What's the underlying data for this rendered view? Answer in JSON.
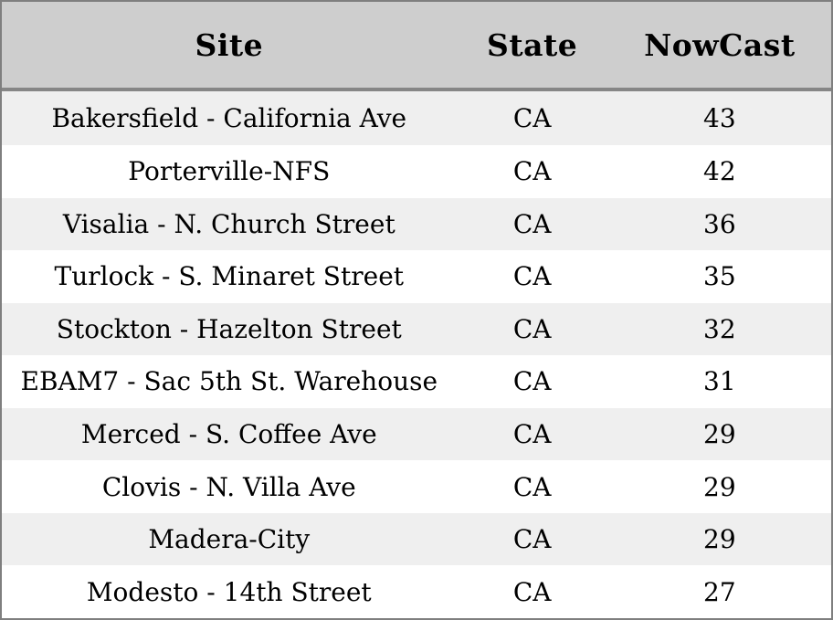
{
  "table": {
    "columns": [
      {
        "key": "site",
        "label": "Site"
      },
      {
        "key": "state",
        "label": "State"
      },
      {
        "key": "nowcast",
        "label": "NowCast"
      }
    ],
    "rows": [
      {
        "site": "Bakersfield - California Ave",
        "state": "CA",
        "nowcast": "43"
      },
      {
        "site": "Porterville-NFS",
        "state": "CA",
        "nowcast": "42"
      },
      {
        "site": "Visalia - N. Church Street",
        "state": "CA",
        "nowcast": "36"
      },
      {
        "site": "Turlock - S. Minaret Street",
        "state": "CA",
        "nowcast": "35"
      },
      {
        "site": "Stockton - Hazelton Street",
        "state": "CA",
        "nowcast": "32"
      },
      {
        "site": "EBAM7 - Sac 5th St. Warehouse",
        "state": "CA",
        "nowcast": "31"
      },
      {
        "site": "Merced - S. Coffee Ave",
        "state": "CA",
        "nowcast": "29"
      },
      {
        "site": "Clovis - N. Villa Ave",
        "state": "CA",
        "nowcast": "29"
      },
      {
        "site": "Madera-City",
        "state": "CA",
        "nowcast": "29"
      },
      {
        "site": "Modesto - 14th Street",
        "state": "CA",
        "nowcast": "27"
      }
    ],
    "colors": {
      "header_bg": "#cecece",
      "row_odd_bg": "#efefef",
      "row_even_bg": "#ffffff",
      "border": "#7f7f7f",
      "separator": "#868686",
      "text": "#000000"
    }
  }
}
